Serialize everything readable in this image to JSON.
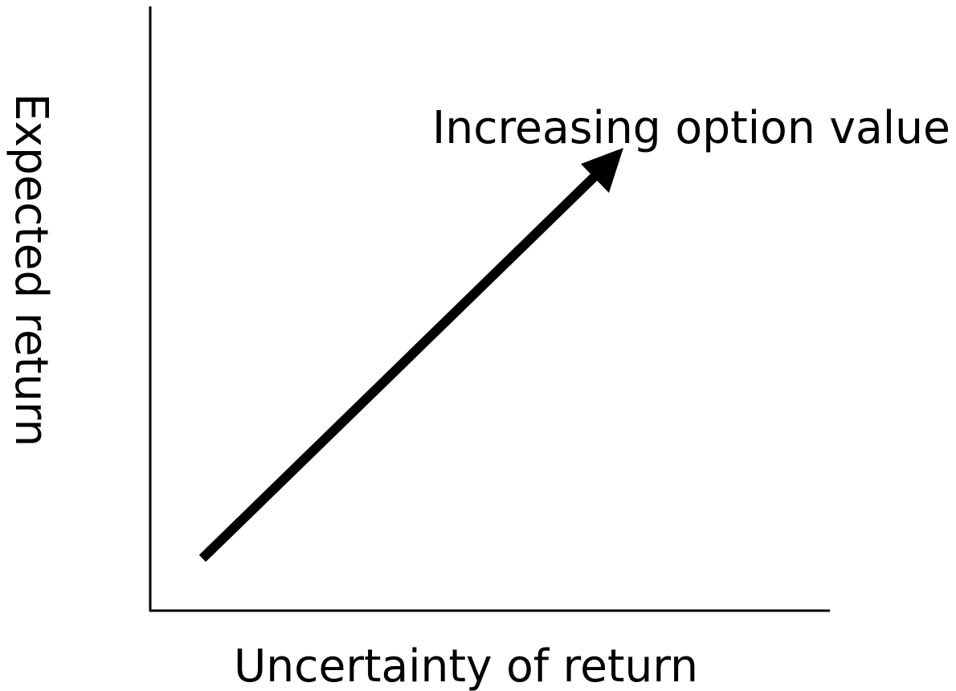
{
  "annotation": "Increasing option value",
  "x_axis": {
    "label": "Uncertainty of return"
  },
  "y_axis": {
    "label": "Expected return"
  }
}
